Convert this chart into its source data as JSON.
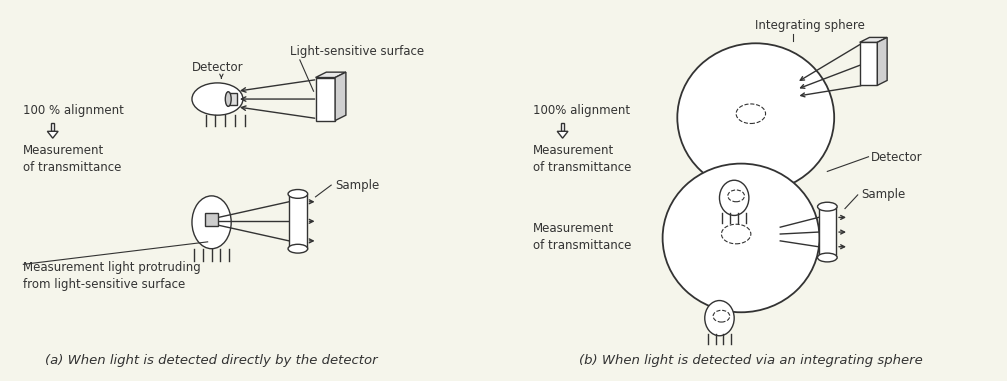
{
  "bg_color": "#f5f5eb",
  "line_color": "#333333",
  "caption_a": "(a) When light is detected directly by the detector",
  "caption_b": "(b) When light is detected via an integrating sphere",
  "label_detector_a": "Detector",
  "label_light_sensitive": "Light-sensitive surface",
  "label_100_align_a": "100 % alignment",
  "label_meas_trans_a": "Measurement\nof transmittance",
  "label_meas_light": "Measurement light protruding\nfrom light-sensitive surface",
  "label_sample_a": "Sample",
  "label_integrating_sphere": "Integrating sphere",
  "label_100_align_b": "100% alignment",
  "label_meas_trans_b": "Measurement\nof transmittance",
  "label_detector_b": "Detector",
  "label_sample_b": "Sample",
  "font_size_label": 8.5,
  "font_size_caption": 9.5
}
